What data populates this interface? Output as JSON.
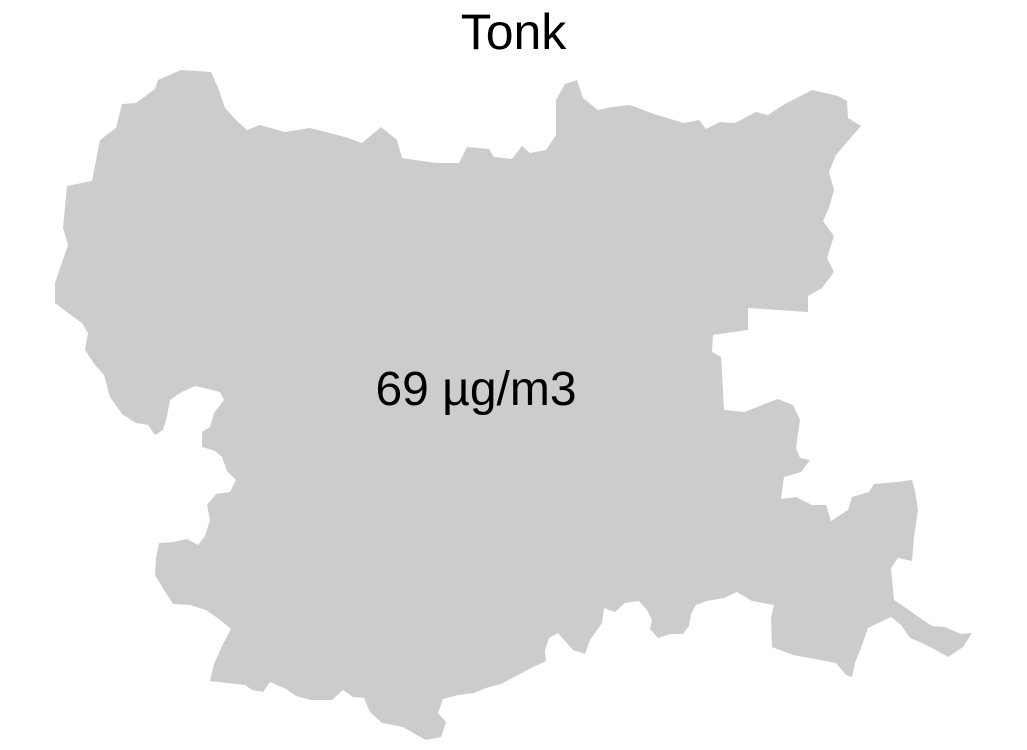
{
  "map": {
    "title": "Tonk",
    "region_label": "69 µg/m3",
    "fill_color": "#cccccc",
    "background_color": "#ffffff",
    "text_color": "#000000"
  }
}
